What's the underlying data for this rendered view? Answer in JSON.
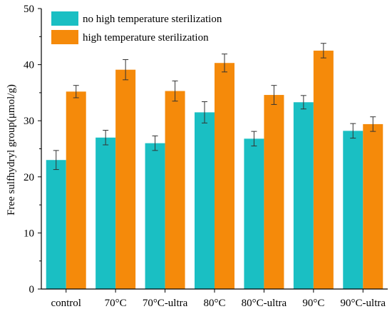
{
  "chart_data": {
    "type": "bar",
    "categories": [
      "control",
      "70°C",
      "70°C-ultra",
      "80°C",
      "80°C-ultra",
      "90°C",
      "90°C-ultra"
    ],
    "series": [
      {
        "name": "no high temperature sterilization",
        "color": "#1ABFC3",
        "values": [
          23.0,
          27.0,
          26.0,
          31.5,
          26.8,
          33.3,
          28.2
        ],
        "errors": [
          1.7,
          1.3,
          1.3,
          1.9,
          1.3,
          1.2,
          1.3
        ]
      },
      {
        "name": "high temperature sterilization",
        "color": "#F58A0A",
        "values": [
          35.2,
          39.1,
          35.3,
          40.3,
          34.6,
          42.5,
          29.4
        ],
        "errors": [
          1.1,
          1.8,
          1.8,
          1.6,
          1.7,
          1.3,
          1.3
        ]
      }
    ],
    "title": "",
    "xlabel": "",
    "ylabel": "Free sulfhydryl group(μmol/g)",
    "ylim": [
      0,
      50
    ],
    "yticks": [
      0,
      10,
      20,
      30,
      40,
      50
    ],
    "grid": false,
    "legend": "top-left"
  }
}
